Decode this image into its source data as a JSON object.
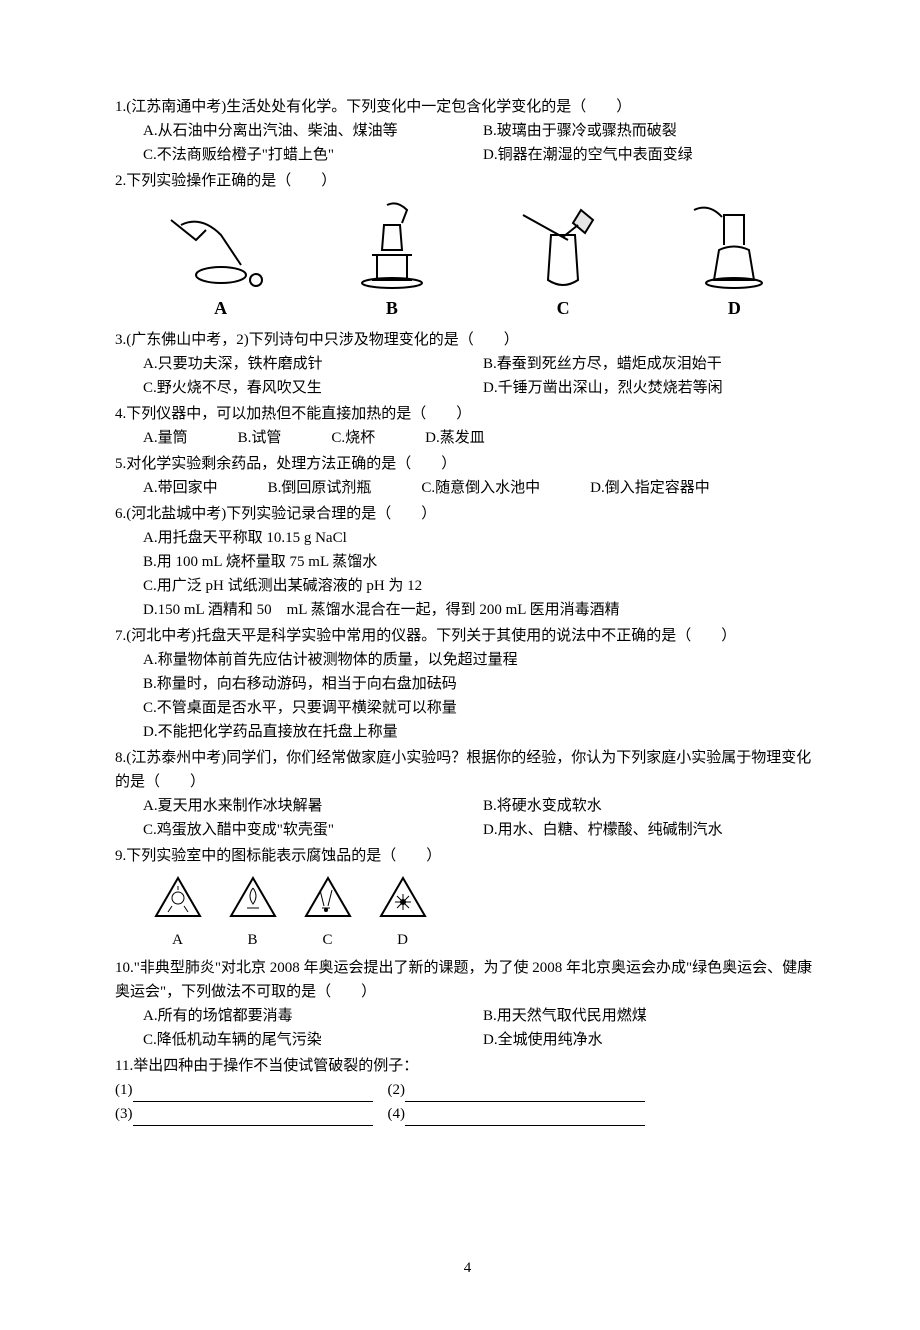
{
  "questions": [
    {
      "num": "1",
      "source": "(江苏南通中考)",
      "stem": "生活处处有化学。下列变化中一定包含化学变化的是（　　）",
      "opts_layout": "two-col",
      "options": [
        {
          "k": "A",
          "t": "从石油中分离出汽油、柴油、煤油等"
        },
        {
          "k": "B",
          "t": "玻璃由于骤冷或骤热而破裂"
        },
        {
          "k": "C",
          "t": "不法商贩给橙子\"打蜡上色\""
        },
        {
          "k": "D",
          "t": "铜器在潮湿的空气中表面变绿"
        }
      ]
    },
    {
      "num": "2",
      "stem": "下列实验操作正确的是（　　）",
      "has_images": true,
      "image_labels": [
        "A",
        "B",
        "C",
        "D"
      ]
    },
    {
      "num": "3",
      "source": "(广东佛山中考，2)",
      "stem": "下列诗句中只涉及物理变化的是（　　）",
      "opts_layout": "two-col",
      "options": [
        {
          "k": "A",
          "t": "只要功夫深，铁杵磨成针"
        },
        {
          "k": "B",
          "t": "春蚕到死丝方尽，蜡炬成灰泪始干"
        },
        {
          "k": "C",
          "t": "野火烧不尽，春风吹又生"
        },
        {
          "k": "D",
          "t": "千锤万凿出深山，烈火焚烧若等闲"
        }
      ]
    },
    {
      "num": "4",
      "stem": "下列仪器中，可以加热但不能直接加热的是（　　）",
      "opts_layout": "one-row",
      "options": [
        {
          "k": "A",
          "t": "量筒"
        },
        {
          "k": "B",
          "t": "试管"
        },
        {
          "k": "C",
          "t": "烧杯"
        },
        {
          "k": "D",
          "t": "蒸发皿"
        }
      ]
    },
    {
      "num": "5",
      "stem": "对化学实验剩余药品，处理方法正确的是（　　）",
      "opts_layout": "one-row",
      "options": [
        {
          "k": "A",
          "t": "带回家中"
        },
        {
          "k": "B",
          "t": "倒回原试剂瓶"
        },
        {
          "k": "C",
          "t": "随意倒入水池中"
        },
        {
          "k": "D",
          "t": "倒入指定容器中"
        }
      ]
    },
    {
      "num": "6",
      "source": "(河北盐城中考)",
      "stem": "下列实验记录合理的是（　　）",
      "opts_layout": "stack",
      "options": [
        {
          "k": "A",
          "t": "用托盘天平称取 10.15 g NaCl"
        },
        {
          "k": "B",
          "t": "用 100 mL 烧杯量取 75 mL 蒸馏水"
        },
        {
          "k": "C",
          "t": "用广泛 pH 试纸测出某碱溶液的 pH 为 12"
        },
        {
          "k": "D",
          "t": "150 mL 酒精和 50　mL 蒸馏水混合在一起，得到 200 mL 医用消毒酒精"
        }
      ]
    },
    {
      "num": "7",
      "source": "(河北中考)",
      "stem": "托盘天平是科学实验中常用的仪器。下列关于其使用的说法中不正确的是（　　）",
      "opts_layout": "stack",
      "options": [
        {
          "k": "A",
          "t": "称量物体前首先应估计被测物体的质量，以免超过量程"
        },
        {
          "k": "B",
          "t": "称量时，向右移动游码，相当于向右盘加砝码"
        },
        {
          "k": "C",
          "t": "不管桌面是否水平，只要调平横梁就可以称量"
        },
        {
          "k": "D",
          "t": "不能把化学药品直接放在托盘上称量"
        }
      ]
    },
    {
      "num": "8",
      "source": "(江苏泰州中考)",
      "stem": "同学们，你们经常做家庭小实验吗？根据你的经验，你认为下列家庭小实验属于物理变化的是（　　）",
      "opts_layout": "two-col",
      "options": [
        {
          "k": "A",
          "t": "夏天用水来制作冰块解暑"
        },
        {
          "k": "B",
          "t": "将硬水变成软水"
        },
        {
          "k": "C",
          "t": "鸡蛋放入醋中变成\"软壳蛋\""
        },
        {
          "k": "D",
          "t": "用水、白糖、柠檬酸、纯碱制汽水"
        }
      ]
    },
    {
      "num": "9",
      "stem": "下列实验室中的图标能表示腐蚀品的是（　　）",
      "has_icons": true,
      "icon_labels": [
        "A",
        "B",
        "C",
        "D"
      ]
    },
    {
      "num": "10",
      "stem": "\"非典型肺炎\"对北京 2008 年奥运会提出了新的课题，为了使 2008 年北京奥运会办成\"绿色奥运会、健康奥运会\"，下列做法不可取的是（　　）",
      "opts_layout": "two-col",
      "options": [
        {
          "k": "A",
          "t": "所有的场馆都要消毒"
        },
        {
          "k": "B",
          "t": "用天然气取代民用燃煤"
        },
        {
          "k": "C",
          "t": "降低机动车辆的尾气污染"
        },
        {
          "k": "D",
          "t": "全城使用纯净水"
        }
      ]
    },
    {
      "num": "11",
      "stem": "举出四种由于操作不当使试管破裂的例子：",
      "fill_blanks": [
        "(1)",
        "(2)",
        "(3)",
        "(4)"
      ]
    }
  ],
  "page_number": "4"
}
